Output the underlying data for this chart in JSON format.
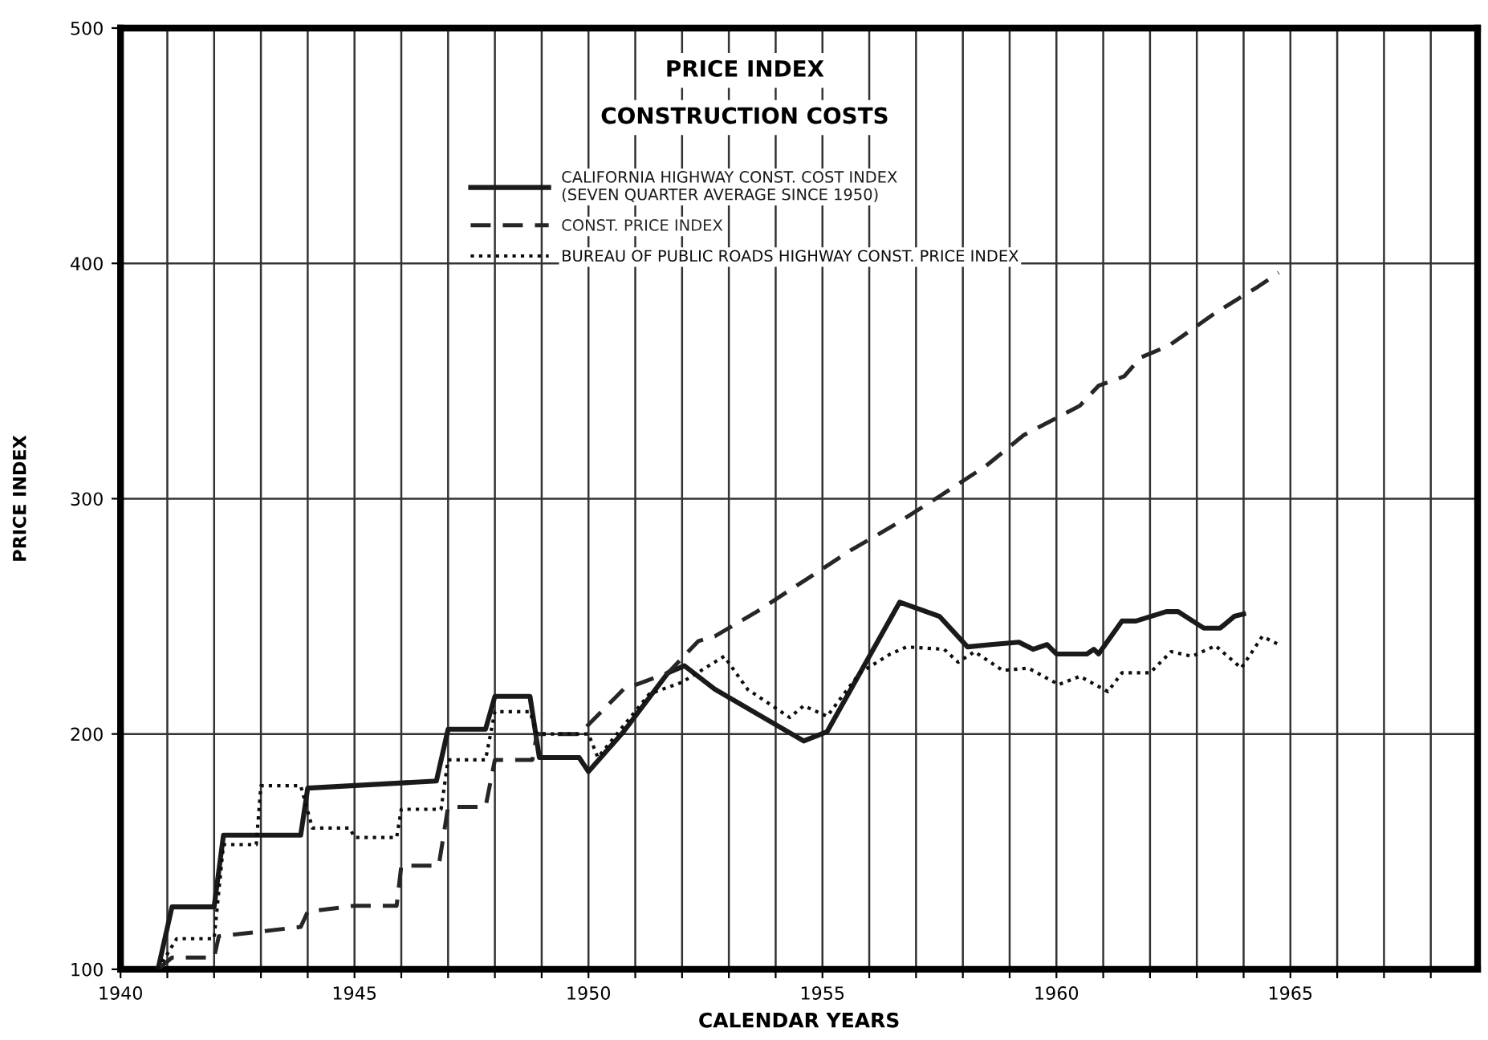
{
  "chart_data": {
    "type": "line",
    "title": "PRICE INDEX",
    "subtitle": "CONSTRUCTION COSTS",
    "xlabel": "CALENDAR YEARS",
    "ylabel": "PRICE INDEX",
    "xlim": [
      1940,
      1969
    ],
    "ylim": [
      100,
      500
    ],
    "yticks": [
      100,
      200,
      300,
      400,
      500
    ],
    "xticks": [
      1940,
      {
        "value": 1941,
        "label": null
      },
      {
        "value": 1942,
        "label": null
      },
      {
        "value": 1943,
        "label": null
      },
      {
        "value": 1944,
        "label": null
      },
      1945,
      {
        "value": 1946,
        "label": null
      },
      {
        "value": 1947,
        "label": null
      },
      {
        "value": 1948,
        "label": null
      },
      {
        "value": 1949,
        "label": null
      },
      1950,
      {
        "value": 1951,
        "label": null
      },
      {
        "value": 1952,
        "label": null
      },
      {
        "value": 1953,
        "label": null
      },
      {
        "value": 1954,
        "label": null
      },
      1955,
      {
        "value": 1956,
        "label": null
      },
      {
        "value": 1957,
        "label": null
      },
      {
        "value": 1958,
        "label": null
      },
      {
        "value": 1959,
        "label": null
      },
      1960,
      {
        "value": 1961,
        "label": null
      },
      {
        "value": 1962,
        "label": null
      },
      {
        "value": 1963,
        "label": null
      },
      {
        "value": 1964,
        "label": null
      },
      1965,
      {
        "value": 1966,
        "label": null
      },
      {
        "value": 1967,
        "label": null
      },
      {
        "value": 1968,
        "label": null
      }
    ],
    "grid": true,
    "legend": "top",
    "marker": "none",
    "series": [
      {
        "name": "CALIFORNIA HIGHWAY CONST. COST INDEX\n(SEVEN QUARTER AVERAGE SINCE 1950)",
        "color": "#1a1a1a",
        "line_style": "solid",
        "x": [
          1940.8,
          1941.1,
          1942.0,
          1942.2,
          1943.85,
          1944.0,
          1946.75,
          1947.0,
          1947.8,
          1948.0,
          1948.75,
          1948.95,
          1949.8,
          1950.0,
          1950.75,
          1951.7,
          1952.05,
          1952.7,
          1954.6,
          1955.1,
          1956.65,
          1957.5,
          1958.1,
          1958.6,
          1959.2,
          1959.5,
          1959.8,
          1960.0,
          1960.65,
          1960.8,
          1960.9,
          1961.4,
          1961.7,
          1962.35,
          1962.6,
          1963.15,
          1963.5,
          1963.8,
          1964.0
        ],
        "values": [
          100,
          126.5,
          126.5,
          157,
          157,
          177,
          180,
          202,
          202,
          216,
          216,
          190,
          190,
          184,
          201,
          226,
          229,
          219,
          197,
          201,
          256,
          250,
          237,
          238,
          239,
          236,
          238,
          234,
          234,
          236,
          234,
          248,
          248,
          252,
          252,
          245,
          245,
          250,
          251
        ]
      },
      {
        "name": "CONST. PRICE INDEX",
        "color": "#262626",
        "line_style": "dashed",
        "x": [
          1940.8,
          1941.1,
          1942.0,
          1942.1,
          1943.85,
          1944.0,
          1945.0,
          1945.9,
          1946.0,
          1946.8,
          1947.0,
          1947.8,
          1948.0,
          1948.8,
          1948.9,
          1949.8,
          1950.75,
          1951.7,
          1952.35,
          1952.7,
          1953.6,
          1954.6,
          1955.6,
          1956.55,
          1957.5,
          1958.5,
          1959.3,
          1960.5,
          1960.9,
          1961.45,
          1961.8,
          1962.4,
          1963.4,
          1964.3,
          1964.75
        ],
        "values": [
          100,
          105,
          105,
          114,
          118,
          124.5,
          127,
          127,
          144,
          144,
          169,
          169,
          189,
          189,
          200,
          200,
          219,
          226,
          239.5,
          241.5,
          252,
          265,
          278,
          289,
          301,
          314,
          327,
          339.5,
          348,
          352,
          360,
          365,
          379,
          390,
          396
        ]
      },
      {
        "name": "BUREAU OF PUBLIC ROADS HIGHWAY CONST. PRICE INDEX",
        "color": "#0d0d0d",
        "line_style": "dotted",
        "x": [
          1940.8,
          1941.2,
          1942.0,
          1942.2,
          1942.9,
          1943.0,
          1943.85,
          1944.1,
          1944.9,
          1945.0,
          1945.9,
          1946.0,
          1946.85,
          1947.0,
          1947.8,
          1948.0,
          1948.75,
          1948.9,
          1950.0,
          1950.2,
          1951.3,
          1952.0,
          1952.9,
          1953.4,
          1954.3,
          1954.6,
          1955.1,
          1955.8,
          1956.45,
          1956.8,
          1957.6,
          1957.9,
          1958.25,
          1958.85,
          1959.4,
          1960.05,
          1960.5,
          1961.1,
          1961.4,
          1962.0,
          1962.45,
          1962.9,
          1963.4,
          1963.95,
          1964.4,
          1964.75
        ],
        "values": [
          100,
          113,
          113,
          153,
          153,
          178,
          178,
          160,
          160,
          156,
          156,
          168,
          168,
          189,
          189,
          209.5,
          209.5,
          200,
          200,
          190,
          217,
          222,
          233,
          219,
          207,
          212,
          207.5,
          226,
          234,
          237,
          236,
          230.5,
          235,
          227,
          228,
          221,
          224.5,
          218,
          226,
          226,
          235,
          233,
          237.5,
          228,
          241.5,
          238
        ]
      }
    ]
  }
}
